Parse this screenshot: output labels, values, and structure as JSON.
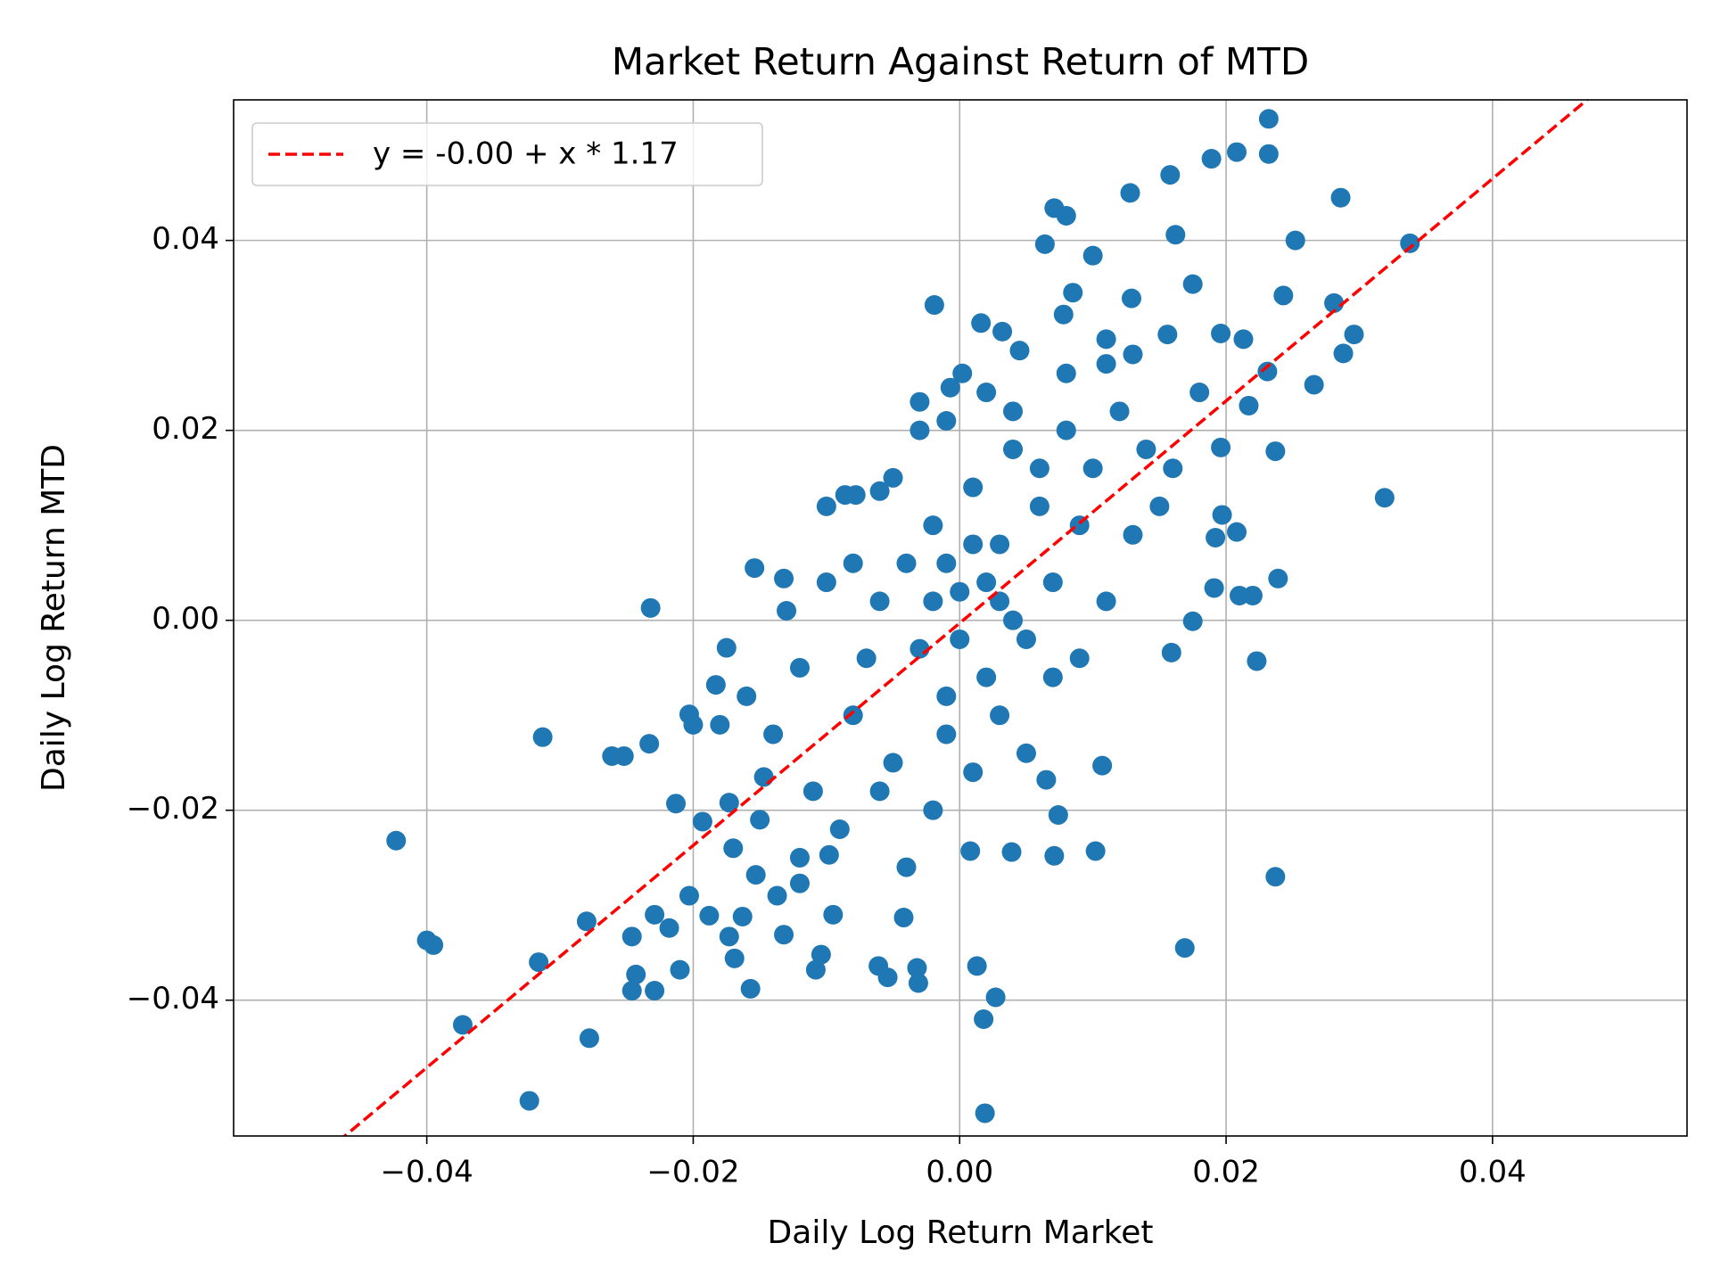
{
  "chart_data": {
    "type": "scatter",
    "title": "Market Return Against Return of MTD",
    "x_label": "Daily Log Return Market",
    "y_label": "Daily Log Return MTD",
    "color": "#1f77b4",
    "grid": true,
    "legend": "upper left",
    "xlim": [
      -0.0545,
      0.0546
    ],
    "ylim": [
      -0.0543,
      0.0548
    ],
    "xticks": [
      {
        "value": -0.04,
        "label": "−0.04"
      },
      {
        "value": -0.02,
        "label": "−0.02"
      },
      {
        "value": 0,
        "label": "0.00"
      },
      0.02,
      0.04
    ],
    "yticks": [
      {
        "value": -0.04,
        "label": "−0.04"
      },
      {
        "value": -0.02,
        "label": "−0.02"
      },
      {
        "value": 0,
        "label": "0.00"
      },
      0.02,
      0.04
    ],
    "fit": {
      "name": "y = -0.00 + x * 1.17",
      "intercept": -0.0003,
      "slope": 1.17,
      "color": "#ff0000",
      "dashed": true
    },
    "x": [
      -0.0423,
      -0.04,
      -0.0395,
      -0.0373,
      -0.0323,
      -0.0316,
      -0.0313,
      -0.0278,
      -0.028,
      -0.0261,
      -0.0252,
      -0.0246,
      -0.0243,
      -0.0246,
      -0.0232,
      -0.0233,
      -0.0229,
      -0.0229,
      -0.0218,
      -0.0213,
      -0.021,
      -0.0203,
      -0.0203,
      -0.0193,
      -0.0188,
      -0.0183,
      -0.0175,
      -0.0173,
      -0.0173,
      -0.0169,
      -0.0163,
      -0.0154,
      -0.0157,
      -0.0153,
      -0.0147,
      -0.0137,
      -0.0132,
      -0.0132,
      -0.012,
      -0.0108,
      -0.0104,
      -0.0098,
      -0.0095,
      -0.0086,
      -0.0078,
      -0.0061,
      -0.0054,
      -0.006,
      -0.0042,
      -0.0032,
      -0.0031,
      -0.0019,
      -0.003,
      -0.0007,
      0.0002,
      0.0016,
      0.0013,
      0.0018,
      0.0019,
      0.0027,
      0.0008,
      0.0032,
      0.0045,
      0.0039,
      0.0064,
      0.0071,
      0.008,
      0.0078,
      0.0085,
      0.0071,
      0.0074,
      0.0065,
      0.01,
      0.0102,
      0.0107,
      0.0128,
      0.0129,
      0.011,
      0.0158,
      0.0162,
      0.0175,
      0.0156,
      0.0159,
      0.0169,
      0.0175,
      0.0189,
      0.0208,
      0.0232,
      0.0232,
      0.0196,
      0.0213,
      0.0196,
      0.0197,
      0.0208,
      0.0192,
      0.0191,
      0.021,
      0.022,
      0.0223,
      0.0237,
      0.0239,
      0.0237,
      0.0217,
      0.0231,
      0.0243,
      0.0252,
      0.0266,
      0.0281,
      0.0286,
      0.0288,
      0.0296,
      0.0319,
      0.0338,
      -0.012,
      -0.01,
      -0.008,
      -0.006,
      -0.005,
      -0.004,
      -0.003,
      -0.002,
      -0.001,
      0,
      0.001,
      0.002,
      0.003,
      0.004,
      0.005,
      0.006,
      0.007,
      0.008,
      0.009,
      0.01,
      0.011,
      0.012,
      0.013,
      0.014,
      0.015,
      -0.014,
      -0.016,
      -0.011,
      -0.009,
      -0.007,
      -0.006,
      -0.004,
      -0.002,
      -0.001,
      0.001,
      0.003,
      0.005,
      0.007,
      0.009,
      -0.013,
      -0.01,
      -0.008,
      -0.005,
      -0.003,
      -0.001,
      0.002,
      0.004,
      0.006,
      0.008,
      0.011,
      0.016,
      0.018,
      0.013,
      -0.002,
      0,
      0.002,
      0.004,
      -0.001,
      0.001,
      0.003,
      -0.018,
      -0.02,
      -0.015,
      -0.012,
      -0.017
    ],
    "values": [
      -0.0232,
      -0.0337,
      -0.0342,
      -0.0426,
      -0.0506,
      -0.036,
      -0.0123,
      -0.044,
      -0.0317,
      -0.0143,
      -0.0143,
      -0.0333,
      -0.0373,
      -0.039,
      0.0013,
      -0.013,
      -0.031,
      -0.039,
      -0.0324,
      -0.0193,
      -0.0368,
      -0.029,
      -0.0099,
      -0.0212,
      -0.0311,
      -0.0068,
      -0.0029,
      -0.0192,
      -0.0333,
      -0.0356,
      -0.0312,
      0.0055,
      -0.0388,
      -0.0268,
      -0.0165,
      -0.029,
      0.0044,
      -0.0331,
      -0.0277,
      -0.0368,
      -0.0352,
      -0.0247,
      -0.031,
      0.0132,
      0.0132,
      -0.0364,
      -0.0376,
      0.0136,
      -0.0313,
      -0.0366,
      -0.0382,
      0.0332,
      0.023,
      0.0245,
      0.026,
      0.0313,
      -0.0364,
      -0.042,
      -0.0519,
      -0.0397,
      -0.0243,
      0.0304,
      0.0284,
      -0.0244,
      0.0396,
      0.0434,
      0.0426,
      0.0322,
      0.0345,
      -0.0248,
      -0.0205,
      -0.0168,
      0.0384,
      -0.0243,
      -0.0153,
      0.045,
      0.0339,
      0.0296,
      0.0469,
      0.0406,
      0.0354,
      0.0301,
      -0.0034,
      -0.0345,
      -0.0001,
      0.0486,
      0.0493,
      0.0528,
      0.0491,
      0.0302,
      0.0296,
      0.0182,
      0.0111,
      0.0093,
      0.0087,
      0.0034,
      0.0026,
      0.0026,
      -0.0043,
      0.0178,
      0.0044,
      -0.027,
      0.0226,
      0.0262,
      0.0342,
      0.04,
      0.0248,
      0.0334,
      0.0445,
      0.0281,
      0.0301,
      0.0129,
      0.0397,
      -0.005,
      0.004,
      -0.01,
      0.002,
      -0.015,
      0.006,
      -0.003,
      0.01,
      -0.008,
      0.003,
      0.014,
      -0.006,
      0.008,
      0.018,
      -0.002,
      0.012,
      0.004,
      0.02,
      0.01,
      0.016,
      0.002,
      0.022,
      0.009,
      0.018,
      0.012,
      -0.012,
      -0.008,
      -0.018,
      -0.022,
      -0.004,
      -0.018,
      -0.026,
      -0.02,
      -0.012,
      -0.016,
      -0.01,
      -0.014,
      -0.006,
      -0.004,
      0.001,
      0.012,
      0.006,
      0.015,
      0.02,
      0.021,
      0.024,
      0.022,
      0.016,
      0.026,
      0.027,
      0.016,
      0.024,
      0.028,
      0.002,
      -0.002,
      0.004,
      0,
      0.006,
      0.008,
      0.002,
      -0.011,
      -0.011,
      -0.021,
      -0.025,
      -0.024
    ]
  }
}
